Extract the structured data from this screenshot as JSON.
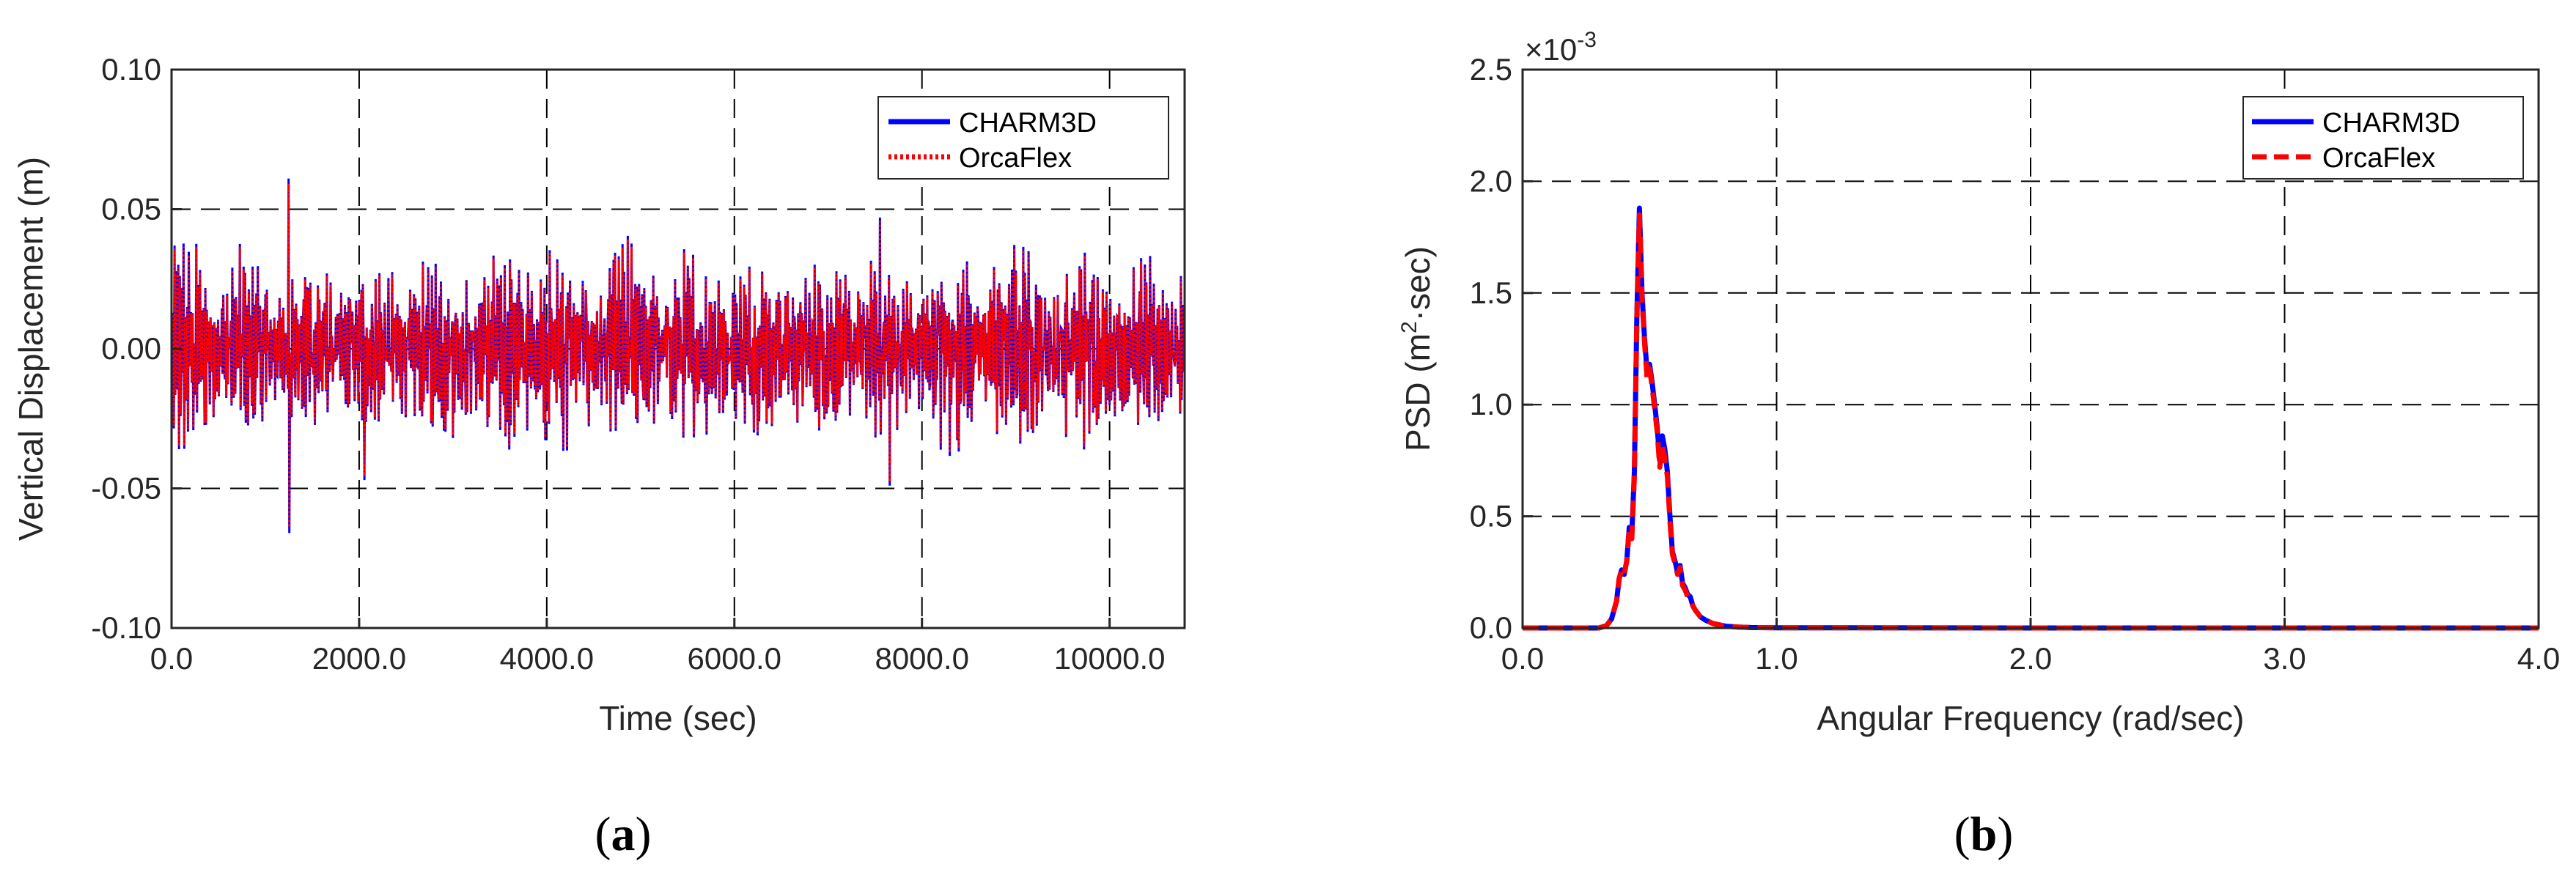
{
  "chart_data": [
    {
      "type": "line",
      "panel_label": "a",
      "xlabel": "Time (sec)",
      "ylabel": "Vertical Displacement (m)",
      "xlim": [
        0,
        10800
      ],
      "ylim": [
        -0.1,
        0.1
      ],
      "xticks": [
        0,
        2000,
        4000,
        6000,
        8000,
        10000
      ],
      "xtick_labels": [
        "0.0",
        "2000.0",
        "4000.0",
        "6000.0",
        "8000.0",
        "10000.0"
      ],
      "yticks": [
        -0.1,
        -0.05,
        0.0,
        0.05,
        0.1
      ],
      "ytick_labels": [
        "-0.10",
        "-0.05",
        "0.00",
        "0.05",
        "0.10"
      ],
      "grid": true,
      "legend_position": "top-right",
      "signal_description": "irregular wave-induced oscillation about zero, typical amplitude 0.02-0.04 m",
      "extremes": [
        {
          "x": 1250,
          "y": 0.061
        },
        {
          "x": 1250,
          "y": -0.066
        },
        {
          "x": 2050,
          "y": -0.047
        },
        {
          "x": 7650,
          "y": -0.049
        },
        {
          "x": 7550,
          "y": 0.047
        }
      ],
      "series": [
        {
          "name": "CHARM3D",
          "color": "#0000ff",
          "style": "solid"
        },
        {
          "name": "OrcaFlex",
          "color": "#ff0000",
          "style": "dotted"
        }
      ]
    },
    {
      "type": "line",
      "panel_label": "b",
      "xlabel": "Angular Frequency (rad/sec)",
      "ylabel_parts": [
        "PSD (m",
        "2",
        "·sec)"
      ],
      "xlim": [
        0,
        4.0
      ],
      "ylim": [
        0,
        2.5
      ],
      "y_multiplier_parts": [
        "×10",
        "-3"
      ],
      "xticks": [
        0,
        1,
        2,
        3,
        4
      ],
      "xtick_labels": [
        "0.0",
        "1.0",
        "2.0",
        "3.0",
        "4.0"
      ],
      "yticks": [
        0,
        0.5,
        1.0,
        1.5,
        2.0,
        2.5
      ],
      "ytick_labels": [
        "0.0",
        "0.5",
        "1.0",
        "1.5",
        "2.0",
        "2.5"
      ],
      "grid": true,
      "legend_position": "top-right",
      "x": [
        0.0,
        0.3,
        0.33,
        0.35,
        0.37,
        0.38,
        0.39,
        0.4,
        0.41,
        0.42,
        0.43,
        0.44,
        0.45,
        0.46,
        0.47,
        0.48,
        0.49,
        0.5,
        0.51,
        0.52,
        0.53,
        0.54,
        0.55,
        0.56,
        0.57,
        0.58,
        0.59,
        0.6,
        0.61,
        0.62,
        0.63,
        0.64,
        0.65,
        0.66,
        0.67,
        0.68,
        0.7,
        0.72,
        0.75,
        0.8,
        0.85,
        0.9,
        1.0,
        2.0,
        3.0,
        4.0
      ],
      "series": [
        {
          "name": "CHARM3D",
          "color": "#0000ff",
          "style": "solid",
          "values": [
            0,
            0,
            0.01,
            0.04,
            0.12,
            0.22,
            0.26,
            0.24,
            0.3,
            0.45,
            0.42,
            0.7,
            1.4,
            1.88,
            1.5,
            1.3,
            1.15,
            1.18,
            1.1,
            1.0,
            0.9,
            0.75,
            0.86,
            0.8,
            0.7,
            0.5,
            0.34,
            0.3,
            0.25,
            0.28,
            0.2,
            0.18,
            0.15,
            0.14,
            0.1,
            0.08,
            0.05,
            0.035,
            0.02,
            0.008,
            0.004,
            0.002,
            0.001,
            0,
            0,
            0
          ]
        },
        {
          "name": "OrcaFlex",
          "color": "#ff0000",
          "style": "dashed",
          "values": [
            0,
            0,
            0.01,
            0.04,
            0.12,
            0.22,
            0.26,
            0.24,
            0.3,
            0.44,
            0.4,
            0.68,
            1.38,
            1.85,
            1.48,
            1.28,
            1.12,
            1.16,
            1.08,
            0.98,
            0.88,
            0.72,
            0.82,
            0.76,
            0.68,
            0.48,
            0.33,
            0.29,
            0.24,
            0.27,
            0.19,
            0.17,
            0.14,
            0.13,
            0.1,
            0.08,
            0.05,
            0.035,
            0.02,
            0.008,
            0.004,
            0.002,
            0.001,
            0,
            0,
            0
          ]
        }
      ]
    }
  ]
}
